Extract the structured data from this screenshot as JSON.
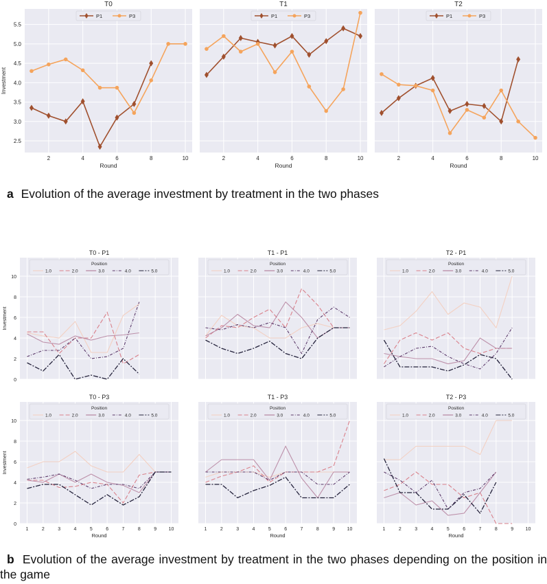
{
  "captions": {
    "a_label": "a",
    "a_text": "Evolution of the average investment by treatment in the two phases",
    "b_label": "b",
    "b_text": "Evolution of the average investment by treatment in the two phases depending on the position in the game"
  },
  "colors": {
    "panel_bg": "#eaeaf2",
    "grid": "#ffffff",
    "P1": "#a0502e",
    "P3": "#f5a45c",
    "positions": [
      "#f3d0c2",
      "#d9808a",
      "#b07896",
      "#5c3a6a",
      "#23213a"
    ]
  },
  "chart_data": [
    {
      "type": "line",
      "title": "T0",
      "xlabel": "Round",
      "ylabel": "Investment",
      "xlim": [
        0.6,
        10.4
      ],
      "ylim": [
        2.2,
        5.9
      ],
      "xticks": [
        2,
        4,
        6,
        8,
        10
      ],
      "yticks": [
        2.5,
        3.0,
        3.5,
        4.0,
        4.5,
        5.0,
        5.5
      ],
      "legend": "top-center",
      "series": [
        {
          "name": "P1",
          "marker": "diamond",
          "x": [
            1,
            2,
            3,
            4,
            5,
            6,
            7,
            8
          ],
          "y": [
            3.35,
            3.15,
            3.0,
            3.52,
            2.35,
            3.1,
            3.45,
            4.5
          ]
        },
        {
          "name": "P3",
          "marker": "circle",
          "x": [
            1,
            2,
            3,
            4,
            5,
            6,
            7,
            8,
            9,
            10
          ],
          "y": [
            4.3,
            4.47,
            4.6,
            4.32,
            3.87,
            3.87,
            3.22,
            4.06,
            5.0,
            5.0
          ]
        }
      ]
    },
    {
      "type": "line",
      "title": "T1",
      "xlabel": "Round",
      "ylabel": "",
      "xlim": [
        0.6,
        10.4
      ],
      "ylim": [
        2.2,
        5.9
      ],
      "xticks": [
        2,
        4,
        6,
        8,
        10
      ],
      "yticks": [],
      "legend": "top-center",
      "series": [
        {
          "name": "P1",
          "marker": "diamond",
          "x": [
            1,
            2,
            3,
            4,
            5,
            6,
            7,
            8,
            9,
            10
          ],
          "y": [
            4.2,
            4.67,
            5.15,
            5.05,
            4.96,
            5.2,
            4.72,
            5.07,
            5.4,
            5.2
          ]
        },
        {
          "name": "P3",
          "marker": "circle",
          "x": [
            1,
            2,
            3,
            4,
            5,
            6,
            7,
            8,
            9,
            10
          ],
          "y": [
            4.87,
            5.2,
            4.8,
            5.0,
            4.27,
            4.8,
            3.9,
            3.27,
            3.83,
            5.8
          ]
        }
      ]
    },
    {
      "type": "line",
      "title": "T2",
      "xlabel": "Round",
      "ylabel": "",
      "xlim": [
        0.6,
        10.4
      ],
      "ylim": [
        2.2,
        5.9
      ],
      "xticks": [
        2,
        4,
        6,
        8,
        10
      ],
      "yticks": [],
      "legend": "top-center",
      "series": [
        {
          "name": "P1",
          "marker": "diamond",
          "x": [
            1,
            2,
            3,
            4,
            5,
            6,
            7,
            8,
            9
          ],
          "y": [
            3.22,
            3.6,
            3.92,
            4.12,
            3.27,
            3.45,
            3.4,
            3.0,
            4.6
          ]
        },
        {
          "name": "P3",
          "marker": "circle",
          "x": [
            1,
            2,
            3,
            4,
            5,
            6,
            7,
            8,
            9,
            10
          ],
          "y": [
            4.22,
            3.95,
            3.92,
            3.8,
            2.7,
            3.3,
            3.1,
            3.8,
            3.0,
            2.58
          ]
        }
      ]
    },
    {
      "type": "line",
      "title": "T0 - P1",
      "xlabel": "",
      "ylabel": "Investment",
      "legend_title": "Position",
      "xlim": [
        0.55,
        10.45
      ],
      "ylim": [
        0,
        11.8
      ],
      "xticks": [],
      "yticks": [
        0,
        2,
        4,
        6,
        8,
        10
      ],
      "series": [
        {
          "name": "1.0",
          "x": [
            1,
            2,
            3,
            4,
            5,
            6,
            7,
            8
          ],
          "y": [
            4.5,
            4.2,
            4.0,
            5.6,
            2.6,
            2.6,
            6.2,
            7.3
          ]
        },
        {
          "name": "2.0",
          "x": [
            1,
            2,
            3,
            4,
            5,
            6,
            7,
            8
          ],
          "y": [
            4.6,
            4.6,
            2.5,
            4.0,
            4.0,
            6.5,
            1.5,
            2.4
          ]
        },
        {
          "name": "3.0",
          "x": [
            1,
            2,
            3,
            4,
            5,
            6,
            7,
            8
          ],
          "y": [
            4.4,
            3.6,
            3.4,
            4.2,
            3.8,
            4.2,
            4.3,
            4.5
          ]
        },
        {
          "name": "4.0",
          "x": [
            1,
            2,
            3,
            4,
            5,
            6,
            7,
            8
          ],
          "y": [
            2.2,
            2.8,
            2.8,
            4.0,
            2.0,
            2.2,
            3.0,
            7.5
          ]
        },
        {
          "name": "5.0",
          "x": [
            1,
            2,
            3,
            4,
            5,
            6,
            7,
            8
          ],
          "y": [
            1.6,
            0.8,
            2.4,
            0.0,
            0.4,
            0.0,
            2.0,
            0.5
          ]
        }
      ]
    },
    {
      "type": "line",
      "title": "T1 - P1",
      "xlabel": "",
      "ylabel": "",
      "legend_title": "Position",
      "xlim": [
        0.55,
        10.45
      ],
      "ylim": [
        0,
        11.8
      ],
      "xticks": [],
      "yticks": [],
      "series": [
        {
          "name": "1.0",
          "x": [
            1,
            2,
            3,
            4,
            5,
            6,
            7,
            8,
            9,
            10
          ],
          "y": [
            4.2,
            6.2,
            5.2,
            5.0,
            4.0,
            4.0,
            5.0,
            5.4,
            5.0,
            5.0
          ]
        },
        {
          "name": "2.0",
          "x": [
            1,
            2,
            3,
            4,
            5,
            6,
            7,
            8,
            9,
            10
          ],
          "y": [
            4.0,
            5.2,
            5.0,
            6.0,
            6.8,
            5.0,
            8.8,
            7.2,
            5.0,
            5.0
          ]
        },
        {
          "name": "3.0",
          "x": [
            1,
            2,
            3,
            4,
            5,
            6,
            7,
            8,
            9,
            10
          ],
          "y": [
            4.2,
            5.0,
            6.3,
            5.2,
            5.0,
            7.5,
            6.0,
            4.0,
            5.0,
            5.0
          ]
        },
        {
          "name": "4.0",
          "x": [
            1,
            2,
            3,
            4,
            5,
            6,
            7,
            8,
            9,
            10
          ],
          "y": [
            5.0,
            4.8,
            5.3,
            5.0,
            5.5,
            5.0,
            2.5,
            5.8,
            7.0,
            6.0
          ]
        },
        {
          "name": "5.0",
          "x": [
            1,
            2,
            3,
            4,
            5,
            6,
            7,
            8,
            9,
            10
          ],
          "y": [
            3.8,
            3.0,
            2.5,
            3.0,
            3.7,
            2.5,
            2.0,
            4.0,
            5.0,
            5.0
          ]
        }
      ]
    },
    {
      "type": "line",
      "title": "T2 - P1",
      "xlabel": "",
      "ylabel": "",
      "legend_title": "Position",
      "xlim": [
        0.55,
        10.45
      ],
      "ylim": [
        0,
        11.8
      ],
      "xticks": [],
      "yticks": [],
      "series": [
        {
          "name": "1.0",
          "x": [
            1,
            2,
            3,
            4,
            5,
            6,
            7,
            8,
            9
          ],
          "y": [
            4.8,
            5.2,
            6.6,
            8.5,
            6.3,
            7.4,
            7.0,
            5.0,
            10.0
          ]
        },
        {
          "name": "2.0",
          "x": [
            1,
            2,
            3,
            4,
            5,
            6,
            7,
            8,
            9
          ],
          "y": [
            1.5,
            3.8,
            4.5,
            3.8,
            4.5,
            3.0,
            2.5,
            3.0,
            3.0
          ]
        },
        {
          "name": "3.0",
          "x": [
            1,
            2,
            3,
            4,
            5,
            6,
            7,
            8,
            9
          ],
          "y": [
            2.5,
            2.2,
            2.0,
            2.0,
            1.5,
            1.8,
            4.0,
            3.0,
            3.0
          ]
        },
        {
          "name": "4.0",
          "x": [
            1,
            2,
            3,
            4,
            5,
            6,
            7,
            8,
            9
          ],
          "y": [
            1.2,
            2.2,
            3.0,
            3.2,
            2.2,
            1.5,
            1.0,
            2.5,
            5.0
          ]
        },
        {
          "name": "5.0",
          "x": [
            1,
            2,
            3,
            4,
            5,
            6,
            7,
            8,
            9
          ],
          "y": [
            3.8,
            1.2,
            1.2,
            1.2,
            0.8,
            1.4,
            2.4,
            2.0,
            0.0
          ]
        }
      ]
    },
    {
      "type": "line",
      "title": "T0 - P3",
      "xlabel": "Round",
      "ylabel": "Investment",
      "legend_title": "Position",
      "xlim": [
        0.55,
        10.45
      ],
      "ylim": [
        0,
        11.8
      ],
      "xticks": [
        1,
        2,
        3,
        4,
        5,
        6,
        7,
        8,
        9,
        10
      ],
      "yticks": [
        0,
        2,
        4,
        6,
        8,
        10
      ],
      "series": [
        {
          "name": "1.0",
          "x": [
            1,
            2,
            3,
            4,
            5,
            6,
            7,
            8,
            9,
            10
          ],
          "y": [
            5.4,
            6.0,
            6.0,
            7.0,
            5.6,
            5.0,
            5.0,
            6.7,
            5.0,
            5.0
          ]
        },
        {
          "name": "2.0",
          "x": [
            1,
            2,
            3,
            4,
            5,
            6,
            7,
            8,
            9,
            10
          ],
          "y": [
            4.2,
            4.2,
            3.5,
            3.6,
            4.0,
            3.8,
            2.0,
            4.7,
            5.0,
            5.0
          ]
        },
        {
          "name": "3.0",
          "x": [
            1,
            2,
            3,
            4,
            5,
            6,
            7,
            8,
            9,
            10
          ],
          "y": [
            4.2,
            4.0,
            4.8,
            4.0,
            4.8,
            4.0,
            3.7,
            3.0,
            5.0,
            5.0
          ]
        },
        {
          "name": "4.0",
          "x": [
            1,
            2,
            3,
            4,
            5,
            6,
            7,
            8,
            9,
            10
          ],
          "y": [
            4.3,
            4.5,
            4.8,
            4.2,
            3.4,
            3.8,
            3.8,
            3.4,
            5.0,
            5.0
          ]
        },
        {
          "name": "5.0",
          "x": [
            1,
            2,
            3,
            4,
            5,
            6,
            7,
            8,
            9,
            10
          ],
          "y": [
            3.4,
            3.8,
            3.8,
            2.8,
            1.8,
            2.8,
            1.8,
            2.6,
            5.0,
            5.0
          ]
        }
      ]
    },
    {
      "type": "line",
      "title": "T1 - P3",
      "xlabel": "Round",
      "ylabel": "",
      "legend_title": "Position",
      "xlim": [
        0.55,
        10.45
      ],
      "ylim": [
        0,
        11.8
      ],
      "xticks": [
        1,
        2,
        3,
        4,
        5,
        6,
        7,
        8,
        9,
        10
      ],
      "yticks": [],
      "series": [
        {
          "name": "1.0",
          "x": [
            1,
            2,
            3,
            4,
            5,
            6,
            7,
            8,
            9,
            10
          ],
          "y": [
            4.5,
            5.0,
            5.0,
            5.0,
            4.5,
            5.0,
            5.0,
            5.0,
            5.0,
            5.0
          ]
        },
        {
          "name": "2.0",
          "x": [
            1,
            2,
            3,
            4,
            5,
            6,
            7,
            8,
            9,
            10
          ],
          "y": [
            4.0,
            4.6,
            5.0,
            5.6,
            4.0,
            5.0,
            5.0,
            5.0,
            5.6,
            10.0
          ]
        },
        {
          "name": "3.0",
          "x": [
            1,
            2,
            3,
            4,
            5,
            6,
            7,
            8,
            9,
            10
          ],
          "y": [
            5.0,
            6.2,
            6.2,
            6.2,
            4.2,
            7.5,
            4.4,
            2.5,
            5.0,
            5.0
          ]
        },
        {
          "name": "4.0",
          "x": [
            1,
            2,
            3,
            4,
            5,
            6,
            7,
            8,
            9,
            10
          ],
          "y": [
            5.0,
            5.0,
            5.0,
            5.0,
            4.2,
            5.0,
            5.0,
            3.8,
            3.8,
            5.0
          ]
        },
        {
          "name": "5.0",
          "x": [
            1,
            2,
            3,
            4,
            5,
            6,
            7,
            8,
            9,
            10
          ],
          "y": [
            3.8,
            3.8,
            2.5,
            3.2,
            3.7,
            4.5,
            2.5,
            2.5,
            2.5,
            3.8
          ]
        }
      ]
    },
    {
      "type": "line",
      "title": "T2 - P3",
      "xlabel": "Round",
      "ylabel": "",
      "legend_title": "Position",
      "xlim": [
        0.55,
        10.45
      ],
      "ylim": [
        0,
        11.8
      ],
      "xticks": [
        1,
        2,
        3,
        4,
        5,
        6,
        7,
        8,
        9,
        10
      ],
      "yticks": [],
      "series": [
        {
          "name": "1.0",
          "x": [
            1,
            2,
            3,
            4,
            5,
            6,
            7,
            8,
            9
          ],
          "y": [
            6.2,
            6.2,
            7.5,
            7.5,
            7.5,
            7.5,
            6.7,
            10.0,
            10.0
          ]
        },
        {
          "name": "2.0",
          "x": [
            1,
            2,
            3,
            4,
            5,
            6,
            7,
            8,
            9
          ],
          "y": [
            3.2,
            3.8,
            5.0,
            3.8,
            3.8,
            2.5,
            3.0,
            0.0,
            0.0
          ]
        },
        {
          "name": "3.0",
          "x": [
            1,
            2,
            3,
            4,
            5,
            6,
            7,
            8
          ],
          "y": [
            2.5,
            3.0,
            1.8,
            2.2,
            0.8,
            1.0,
            3.0,
            5.0
          ]
        },
        {
          "name": "4.0",
          "x": [
            1,
            2,
            3,
            4,
            5,
            6,
            7,
            8
          ],
          "y": [
            5.0,
            4.2,
            3.0,
            4.2,
            1.4,
            3.0,
            3.4,
            5.0
          ]
        },
        {
          "name": "5.0",
          "x": [
            1,
            2,
            3,
            4,
            5,
            6,
            7,
            8
          ],
          "y": [
            6.3,
            3.0,
            3.0,
            1.4,
            1.4,
            2.8,
            1.0,
            4.0
          ]
        }
      ]
    }
  ]
}
